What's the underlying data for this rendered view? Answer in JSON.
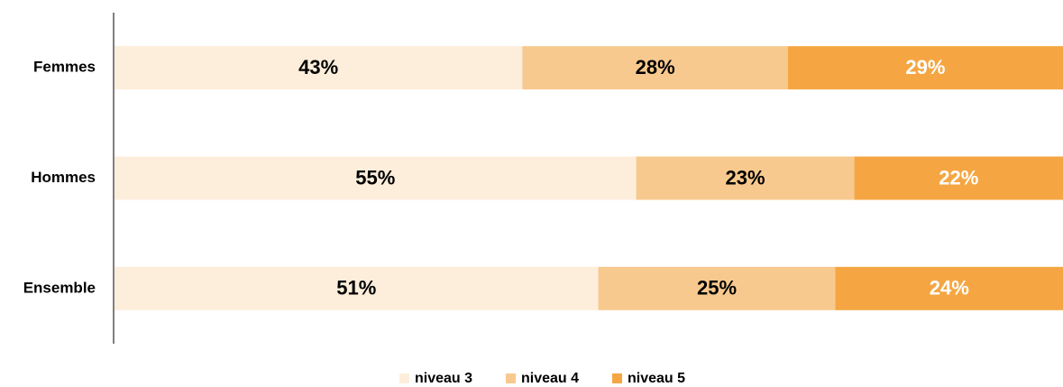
{
  "chart_data": {
    "type": "stacked-bar-horizontal",
    "categories": [
      "Femmes",
      "Hommes",
      "Ensemble"
    ],
    "series": [
      {
        "name": "niveau 3",
        "color": "#fdeedb",
        "label_color": "#000000",
        "values": [
          43,
          55,
          51
        ],
        "value_labels": [
          "43%",
          "55%",
          "51%"
        ]
      },
      {
        "name": "niveau 4",
        "color": "#f8c98e",
        "label_color": "#000000",
        "values": [
          28,
          23,
          25
        ],
        "value_labels": [
          "28%",
          "23%",
          "25%"
        ]
      },
      {
        "name": "niveau 5",
        "color": "#f5a642",
        "label_color": "#ffffff",
        "values": [
          29,
          22,
          24
        ],
        "value_labels": [
          "29%",
          "22%",
          "24%"
        ]
      }
    ],
    "legend": "bottom"
  }
}
